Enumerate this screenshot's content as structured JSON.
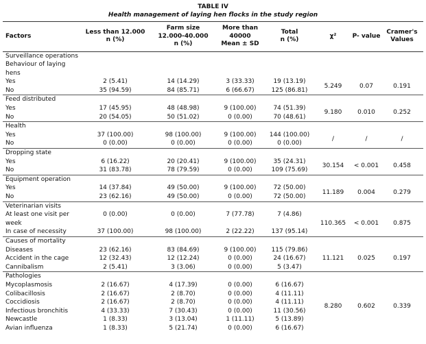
{
  "title": "TABLE IV",
  "subtitle": "Health management of laying hen flocks in the study region",
  "header": [
    [
      "Factors"
    ],
    [
      "Less than 12.000",
      "n (%)"
    ],
    [
      "Farm size",
      "12.000-40.000",
      "n (%)"
    ],
    [
      "More than 40000",
      "Mean ± SD"
    ],
    [
      "Total",
      "n (%)"
    ],
    [
      "χ²"
    ],
    [
      "P- value"
    ],
    [
      "Cramer's",
      "Values"
    ]
  ],
  "groups": [
    {
      "heading": [
        "Surveillance operations",
        "Behaviour of laying",
        "hens"
      ],
      "rows": [
        {
          "label": "Yes",
          "cells": [
            "2 (5.41)",
            "14 (14.29)",
            "3 (33.33)",
            "19 (13.19)"
          ]
        },
        {
          "label": "No",
          "cells": [
            "35 (94.59)",
            "84 (85.71)",
            "6 (66.67)",
            "125 (86.81)"
          ]
        }
      ],
      "stats": [
        "5.249",
        "0.07",
        "0.191"
      ]
    },
    {
      "heading": [
        "Feed distributed"
      ],
      "rows": [
        {
          "label": "Yes",
          "cells": [
            "17 (45.95)",
            "48 (48.98)",
            "9 (100.00)",
            "74 (51.39)"
          ]
        },
        {
          "label": "No",
          "cells": [
            "20 (54.05)",
            "50 (51.02)",
            "0 (0.00)",
            "70 (48.61)"
          ]
        }
      ],
      "stats": [
        "9.180",
        "0.010",
        "0.252"
      ]
    },
    {
      "heading": [
        "Health"
      ],
      "rows": [
        {
          "label": "Yes",
          "cells": [
            "37 (100.00)",
            "98 (100.00)",
            "9 (100.00)",
            "144 (100.00)"
          ]
        },
        {
          "label": "No",
          "cells": [
            "0 (0.00)",
            "0 (0.00)",
            "0 (0.00)",
            "0 (0.00)"
          ]
        }
      ],
      "stats": [
        "/",
        "/",
        "/"
      ]
    },
    {
      "heading": [
        "Dropping state"
      ],
      "rows": [
        {
          "label": "Yes",
          "cells": [
            "6 (16.22)",
            "20 (20.41)",
            "9 (100.00)",
            "35 (24.31)"
          ]
        },
        {
          "label": "No",
          "cells": [
            "31 (83.78)",
            "78 (79.59)",
            "0 (0.00)",
            "109 (75.69)"
          ]
        }
      ],
      "stats": [
        "30.154",
        "< 0.001",
        "0.458"
      ]
    },
    {
      "heading": [
        "Equipment operation"
      ],
      "rows": [
        {
          "label": "Yes",
          "cells": [
            "14 (37.84)",
            "49 (50.00)",
            "9 (100.00)",
            "72 (50.00)"
          ]
        },
        {
          "label": "No",
          "cells": [
            "23 (62.16)",
            "49 (50.00)",
            "0 (0.00)",
            "72 (50.00)"
          ]
        }
      ],
      "stats": [
        "11.189",
        "0.004",
        "0.279"
      ]
    },
    {
      "heading": [
        "Veterinarian visits"
      ],
      "rows": [
        {
          "label": "At least one visit per week",
          "cells": [
            "0 (0.00)",
            "0 (0.00)",
            "7 (77.78)",
            "7 (4.86)"
          ]
        },
        {
          "label": "In case of necessity",
          "cells": [
            "37 (100.00)",
            "98 (100.00)",
            "2 (22.22)",
            "137 (95.14)"
          ]
        }
      ],
      "stats": [
        "110.365",
        "< 0.001",
        "0.875"
      ]
    },
    {
      "heading": [
        "Causes of mortality"
      ],
      "rows": [
        {
          "label": "Diseases",
          "cells": [
            "23 (62.16)",
            "83 (84.69)",
            "9 (100.00)",
            "115 (79.86)"
          ]
        },
        {
          "label": "Accident in the cage",
          "cells": [
            "12 (32.43)",
            "12 (12.24)",
            "0 (0.00)",
            "24 (16.67)"
          ]
        },
        {
          "label": "Cannibalism",
          "cells": [
            "2 (5.41)",
            "3 (3.06)",
            "0 (0.00)",
            "5 (3.47)"
          ]
        }
      ],
      "stats": [
        "11.121",
        "0.025",
        "0.197"
      ]
    },
    {
      "heading": [
        "Pathologies"
      ],
      "rows": [
        {
          "label": "Mycoplasmosis",
          "cells": [
            "2 (16.67)",
            "4 (17.39)",
            "0 (0.00)",
            "6 (16.67)"
          ]
        },
        {
          "label": "Colibacillosis",
          "cells": [
            "2 (16.67)",
            "2 (8.70)",
            "0 (0.00)",
            "4 (11.11)"
          ]
        },
        {
          "label": "Coccidiosis",
          "cells": [
            "2 (16.67)",
            "2 (8.70)",
            "0 (0.00)",
            "4 (11.11)"
          ]
        },
        {
          "label": "Infectious bronchitis",
          "cells": [
            "4 (33.33)",
            "7 (30.43)",
            "0 (0.00)",
            "11 (30.56)"
          ]
        },
        {
          "label": "Newcastle",
          "cells": [
            "1 (8.33)",
            "3 (13.04)",
            "1 (11.11)",
            "5 (13.89)"
          ]
        },
        {
          "label": "Avian influenza",
          "cells": [
            "1 (8.33)",
            "5 (21.74)",
            "0 (0.00)",
            "6 (16.67)"
          ]
        }
      ],
      "stats": [
        "8.280",
        "0.602",
        "0.339"
      ]
    }
  ]
}
